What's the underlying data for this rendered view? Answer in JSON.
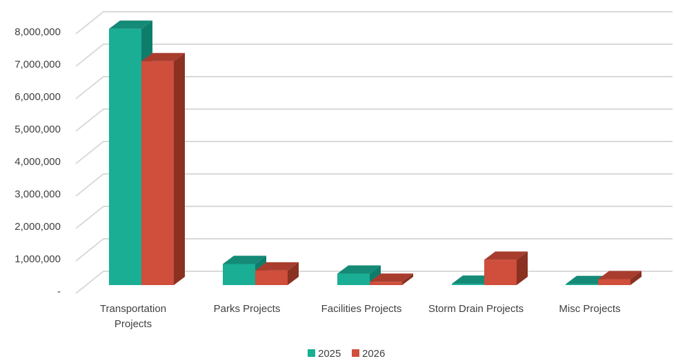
{
  "chart_data": {
    "type": "bar",
    "title": "",
    "xlabel": "",
    "ylabel": "",
    "categories": [
      [
        "Transportation",
        "Projects"
      ],
      [
        "Parks Projects"
      ],
      [
        "Facilities Projects"
      ],
      [
        "Storm Drain Projects"
      ],
      [
        "Misc Projects"
      ]
    ],
    "series": [
      {
        "name": "2025",
        "values": [
          7900000,
          650000,
          350000,
          40000,
          30000
        ]
      },
      {
        "name": "2026",
        "values": [
          6900000,
          450000,
          100000,
          780000,
          180000
        ]
      }
    ],
    "y_ticks": [
      {
        "value": 0,
        "label": "-"
      },
      {
        "value": 1000000,
        "label": "1,000,000"
      },
      {
        "value": 2000000,
        "label": "2,000,000"
      },
      {
        "value": 3000000,
        "label": "3,000,000"
      },
      {
        "value": 4000000,
        "label": "4,000,000"
      },
      {
        "value": 5000000,
        "label": "5,000,000"
      },
      {
        "value": 6000000,
        "label": "6,000,000"
      },
      {
        "value": 7000000,
        "label": "7,000,000"
      },
      {
        "value": 8000000,
        "label": "8,000,000"
      }
    ],
    "ylim": [
      0,
      8000000
    ],
    "grid": true,
    "legend": "bottom",
    "style": "3d-clustered-column"
  },
  "colors": {
    "2025": {
      "front": "#1aae95",
      "side": "#0f7d6b",
      "top": "#148a77"
    },
    "2026": {
      "front": "#cf4e3c",
      "side": "#8a3122",
      "top": "#a83d2e"
    },
    "grid": "#d9d9d9",
    "text": "#404040"
  }
}
